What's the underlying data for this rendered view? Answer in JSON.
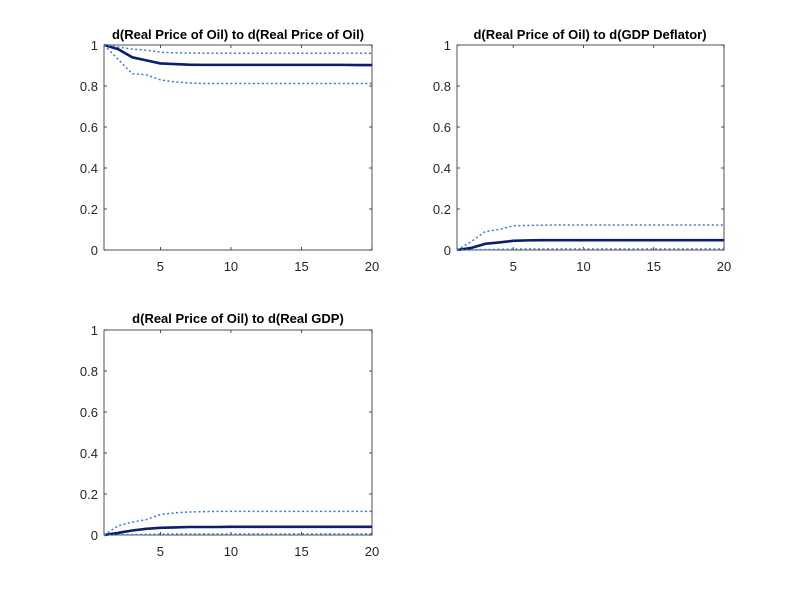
{
  "figure": {
    "colors": {
      "median": "#0b1f6b",
      "bands": "#3a7ad6",
      "axes": "#262626"
    }
  },
  "chart_data": [
    {
      "type": "line",
      "title": "d(Real Price of Oil) to d(Real Price of Oil)",
      "xlabel": "",
      "ylabel": "",
      "xlim": [
        1,
        20
      ],
      "ylim": [
        0,
        1
      ],
      "xticks": [
        "5",
        "10",
        "15",
        "20"
      ],
      "yticks": [
        "0",
        "0.2",
        "0.4",
        "0.6",
        "0.8",
        "1"
      ],
      "x": [
        1,
        2,
        3,
        4,
        5,
        6,
        7,
        8,
        9,
        10,
        11,
        12,
        13,
        14,
        15,
        16,
        17,
        18,
        19,
        20
      ],
      "series": [
        {
          "role": "median",
          "values": [
            1.0,
            0.98,
            0.94,
            0.925,
            0.91,
            0.907,
            0.904,
            0.903,
            0.903,
            0.903,
            0.903,
            0.903,
            0.903,
            0.903,
            0.903,
            0.903,
            0.903,
            0.903,
            0.902,
            0.902
          ]
        },
        {
          "role": "upper",
          "values": [
            1.0,
            0.99,
            0.98,
            0.975,
            0.965,
            0.962,
            0.961,
            0.96,
            0.96,
            0.96,
            0.96,
            0.96,
            0.96,
            0.96,
            0.96,
            0.96,
            0.96,
            0.96,
            0.96,
            0.96
          ]
        },
        {
          "role": "lower",
          "values": [
            1.0,
            0.93,
            0.86,
            0.855,
            0.83,
            0.82,
            0.815,
            0.812,
            0.812,
            0.812,
            0.812,
            0.812,
            0.812,
            0.812,
            0.812,
            0.812,
            0.812,
            0.812,
            0.812,
            0.812
          ]
        }
      ]
    },
    {
      "type": "line",
      "title": "d(Real Price of Oil) to d(GDP Deflator)",
      "xlabel": "",
      "ylabel": "",
      "xlim": [
        1,
        20
      ],
      "ylim": [
        0,
        1
      ],
      "xticks": [
        "5",
        "10",
        "15",
        "20"
      ],
      "yticks": [
        "0",
        "0.2",
        "0.4",
        "0.6",
        "0.8",
        "1"
      ],
      "x": [
        1,
        2,
        3,
        4,
        5,
        6,
        7,
        8,
        9,
        10,
        11,
        12,
        13,
        14,
        15,
        16,
        17,
        18,
        19,
        20
      ],
      "series": [
        {
          "role": "median",
          "values": [
            0.0,
            0.01,
            0.03,
            0.037,
            0.045,
            0.047,
            0.048,
            0.048,
            0.048,
            0.048,
            0.048,
            0.048,
            0.048,
            0.048,
            0.048,
            0.048,
            0.048,
            0.048,
            0.048,
            0.048
          ]
        },
        {
          "role": "upper",
          "values": [
            0.0,
            0.04,
            0.09,
            0.1,
            0.118,
            0.12,
            0.121,
            0.122,
            0.122,
            0.122,
            0.122,
            0.122,
            0.122,
            0.122,
            0.122,
            0.122,
            0.122,
            0.122,
            0.122,
            0.122
          ]
        },
        {
          "role": "lower",
          "values": [
            0.0,
            0.001,
            0.002,
            0.003,
            0.004,
            0.005,
            0.005,
            0.005,
            0.005,
            0.005,
            0.005,
            0.005,
            0.005,
            0.005,
            0.005,
            0.005,
            0.005,
            0.005,
            0.005,
            0.005
          ]
        }
      ]
    },
    {
      "type": "line",
      "title": "d(Real Price of Oil) to d(Real GDP)",
      "xlabel": "",
      "ylabel": "",
      "xlim": [
        1,
        20
      ],
      "ylim": [
        0,
        1
      ],
      "xticks": [
        "5",
        "10",
        "15",
        "20"
      ],
      "yticks": [
        "0",
        "0.2",
        "0.4",
        "0.6",
        "0.8",
        "1"
      ],
      "x": [
        1,
        2,
        3,
        4,
        5,
        6,
        7,
        8,
        9,
        10,
        11,
        12,
        13,
        14,
        15,
        16,
        17,
        18,
        19,
        20
      ],
      "series": [
        {
          "role": "median",
          "values": [
            0.0,
            0.01,
            0.022,
            0.03,
            0.035,
            0.037,
            0.039,
            0.039,
            0.039,
            0.04,
            0.04,
            0.04,
            0.04,
            0.04,
            0.04,
            0.04,
            0.04,
            0.04,
            0.04,
            0.04
          ]
        },
        {
          "role": "upper",
          "values": [
            0.0,
            0.045,
            0.063,
            0.075,
            0.1,
            0.108,
            0.112,
            0.114,
            0.115,
            0.115,
            0.115,
            0.115,
            0.115,
            0.115,
            0.115,
            0.115,
            0.115,
            0.115,
            0.115,
            0.115
          ]
        },
        {
          "role": "lower",
          "values": [
            0.0,
            0.001,
            0.002,
            0.003,
            0.004,
            0.005,
            0.005,
            0.005,
            0.005,
            0.005,
            0.005,
            0.005,
            0.005,
            0.005,
            0.005,
            0.005,
            0.005,
            0.005,
            0.005,
            0.005
          ]
        }
      ]
    }
  ]
}
